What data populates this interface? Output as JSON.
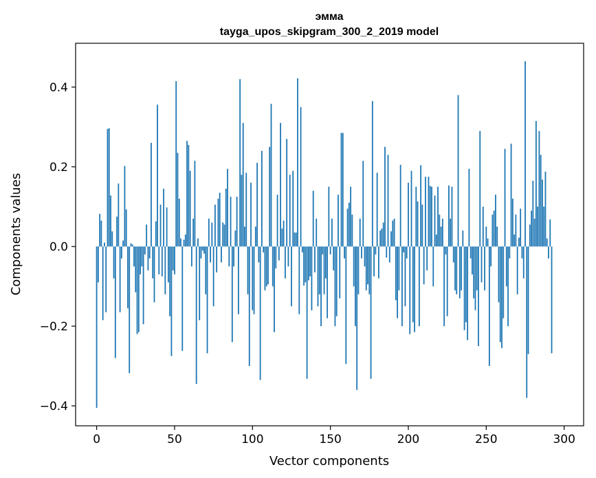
{
  "chart_data": {
    "type": "bar",
    "title": "эмма",
    "subtitle": "tayga_upos_skipgram_300_2_2019 model",
    "xlabel": "Vector components",
    "ylabel": "Components values",
    "xlim": [
      -13.5,
      312.5
    ],
    "ylim": [
      -0.45,
      0.51
    ],
    "xticks": [
      0,
      50,
      100,
      150,
      200,
      250,
      300
    ],
    "xtick_labels": [
      "0",
      "50",
      "100",
      "150",
      "200",
      "250",
      "300"
    ],
    "yticks": [
      -0.4,
      -0.2,
      0.0,
      0.2,
      0.4
    ],
    "ytick_labels": [
      "−0.4",
      "−0.2",
      "0.0",
      "0.2",
      "0.4"
    ],
    "grid": false,
    "bar_color": "#1f77b4",
    "values": [
      -0.405,
      -0.09,
      0.082,
      0.065,
      -0.185,
      0.01,
      -0.165,
      0.295,
      0.297,
      0.128,
      0.038,
      -0.08,
      -0.28,
      0.075,
      0.158,
      -0.165,
      -0.03,
      0.015,
      0.202,
      0.093,
      -0.155,
      -0.318,
      0.008,
      0.005,
      -0.05,
      -0.115,
      -0.22,
      -0.215,
      -0.07,
      -0.05,
      -0.195,
      -0.02,
      0.055,
      -0.06,
      -0.03,
      0.26,
      -0.08,
      -0.14,
      0.063,
      0.356,
      -0.07,
      0.105,
      -0.075,
      0.145,
      -0.12,
      0.098,
      -0.09,
      -0.175,
      -0.275,
      -0.06,
      -0.07,
      0.415,
      0.235,
      0.12,
      0.02,
      -0.262,
      0.017,
      0.03,
      0.265,
      0.255,
      0.19,
      -0.05,
      0.07,
      0.215,
      -0.345,
      0.02,
      -0.185,
      -0.03,
      -0.01,
      -0.018,
      -0.12,
      -0.268,
      0.07,
      -0.04,
      0.06,
      -0.15,
      0.105,
      -0.065,
      0.12,
      0.135,
      -0.04,
      0.06,
      0.055,
      0.145,
      0.195,
      -0.05,
      0.125,
      -0.24,
      -0.05,
      0.04,
      0.125,
      -0.17,
      0.42,
      0.18,
      0.31,
      0.05,
      0.185,
      -0.12,
      -0.3,
      0.16,
      -0.16,
      -0.17,
      0.05,
      0.21,
      -0.04,
      -0.335,
      0.24,
      -0.015,
      -0.11,
      -0.1,
      -0.095,
      0.25,
      0.358,
      -0.1,
      -0.215,
      -0.055,
      0.13,
      -0.035,
      0.31,
      0.045,
      0.065,
      -0.08,
      0.27,
      -0.05,
      0.18,
      -0.15,
      0.19,
      0.035,
      0.035,
      0.422,
      -0.17,
      0.35,
      -0.015,
      -0.098,
      -0.09,
      -0.332,
      -0.085,
      -0.075,
      -0.16,
      0.14,
      -0.065,
      0.07,
      -0.15,
      -0.12,
      -0.2,
      -0.02,
      -0.12,
      -0.08,
      -0.18,
      0.15,
      -0.02,
      0.07,
      -0.06,
      -0.2,
      -0.175,
      0.13,
      -0.13,
      0.285,
      0.285,
      -0.03,
      -0.295,
      0.095,
      0.11,
      0.15,
      0.08,
      -0.1,
      -0.2,
      -0.36,
      -0.12,
      0.07,
      -0.03,
      0.215,
      -0.05,
      -0.11,
      -0.095,
      -0.12,
      -0.332,
      0.365,
      -0.075,
      -0.02,
      0.185,
      -0.08,
      0.04,
      0.045,
      0.06,
      0.25,
      -0.028,
      0.23,
      -0.04,
      0.038,
      0.065,
      0.07,
      -0.135,
      -0.18,
      -0.11,
      0.205,
      -0.2,
      -0.015,
      -0.15,
      -0.03,
      0.16,
      -0.22,
      0.19,
      -0.19,
      -0.215,
      0.15,
      0.113,
      -0.2,
      0.204,
      0.105,
      -0.095,
      0.175,
      -0.06,
      0.175,
      0.152,
      0.15,
      -0.1,
      0.128,
      0.03,
      0.15,
      0.08,
      0.05,
      0.07,
      -0.2,
      -0.02,
      -0.175,
      0.153,
      0.07,
      0.15,
      -0.04,
      -0.11,
      -0.12,
      0.38,
      -0.13,
      -0.11,
      0.04,
      -0.21,
      -0.19,
      -0.235,
      0.195,
      -0.03,
      -0.07,
      -0.13,
      -0.16,
      -0.11,
      -0.25,
      0.29,
      -0.09,
      0.1,
      -0.11,
      0.05,
      0.02,
      -0.3,
      -0.05,
      0.08,
      0.09,
      0.13,
      0.05,
      -0.14,
      -0.24,
      -0.255,
      -0.18,
      0.245,
      -0.1,
      -0.2,
      -0.03,
      0.258,
      0.12,
      0.03,
      0.08,
      -0.12,
      0.022,
      0.095,
      -0.03,
      -0.08,
      0.465,
      -0.38,
      -0.27,
      0.055,
      0.09,
      0.165,
      0.07,
      0.315,
      0.1,
      0.29,
      0.23,
      0.168,
      0.1,
      0.188,
      0.02,
      -0.03,
      0.068,
      -0.268,
      0.0
    ]
  }
}
